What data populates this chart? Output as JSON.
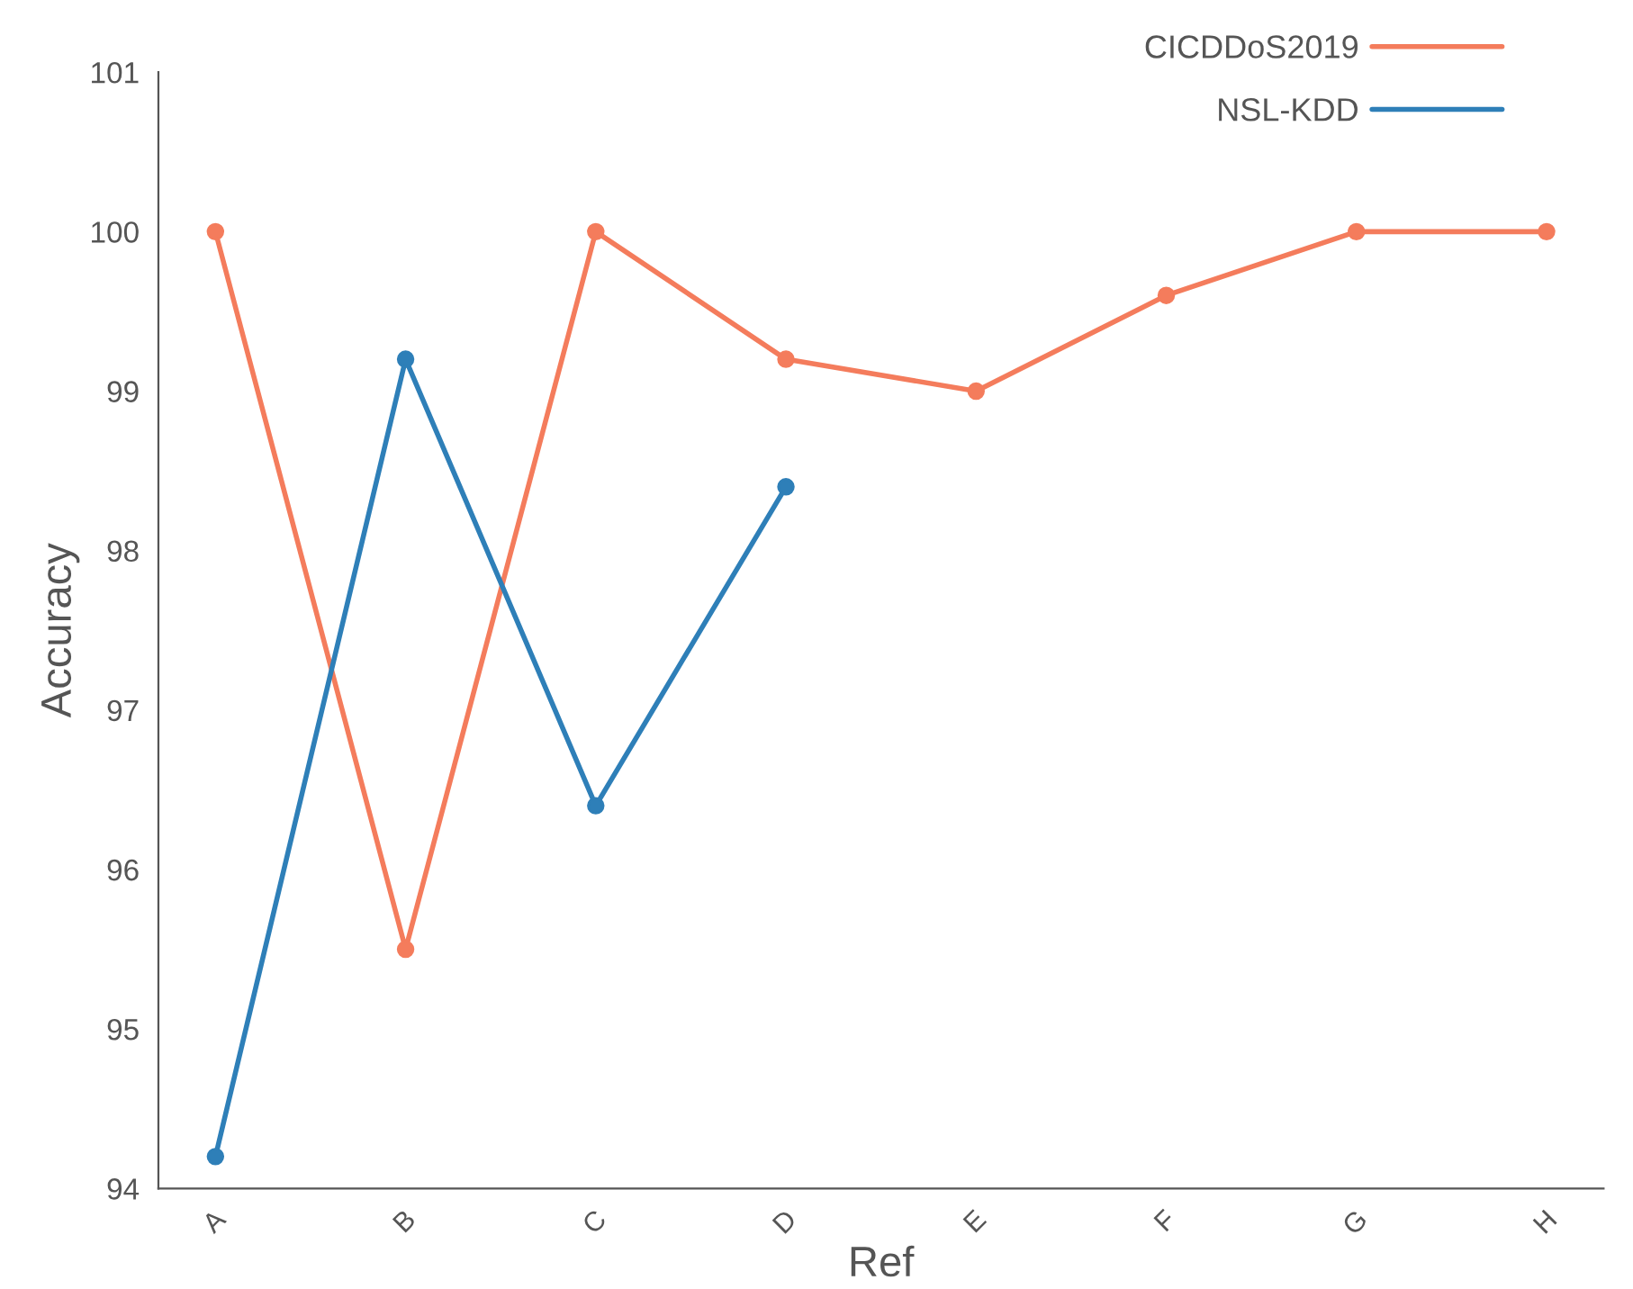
{
  "chart_data": {
    "type": "line",
    "xlabel": "Ref",
    "ylabel": "Accuracy",
    "categories": [
      "A",
      "B",
      "C",
      "D",
      "E",
      "F",
      "G",
      "H"
    ],
    "series": [
      {
        "name": "CICDDoS2019",
        "color": "#f47c5c",
        "values": [
          100,
          95.5,
          100,
          99.2,
          99.0,
          99.6,
          100,
          100
        ]
      },
      {
        "name": "NSL-KDD",
        "color": "#2e7fb8",
        "values": [
          94.2,
          99.2,
          96.4,
          98.4,
          null,
          null,
          null,
          null
        ]
      }
    ],
    "ylim": [
      94,
      101
    ],
    "yticks": [
      94,
      95,
      96,
      97,
      98,
      99,
      100,
      101
    ],
    "grid": false,
    "legend": "top right",
    "marker": "circle",
    "line_style": "solid"
  }
}
